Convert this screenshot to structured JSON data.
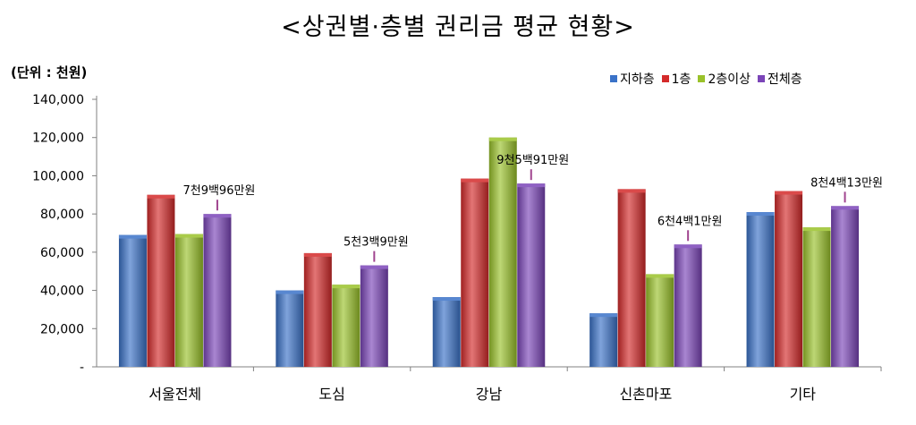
{
  "title": "<상권별·층별 권리금 평균 현황>",
  "unit": "(단위 : 천원)",
  "chart_data": {
    "type": "bar",
    "title": "<상권별·층별 권리금 평균 현황>",
    "categories": [
      "서울전체",
      "도심",
      "강남",
      "신촌마포",
      "기타"
    ],
    "series": [
      {
        "name": "지하층",
        "color": "#3a72c8",
        "values": [
          69000,
          40000,
          36500,
          28000,
          81000
        ]
      },
      {
        "name": "1층",
        "color": "#d42a2a",
        "values": [
          90000,
          59500,
          98500,
          93000,
          92000
        ]
      },
      {
        "name": "2층이상",
        "color": "#9ac22a",
        "values": [
          69500,
          43000,
          120000,
          48500,
          73000
        ]
      },
      {
        "name": "전체층",
        "color": "#7b45b8",
        "values": [
          79960,
          53090,
          95910,
          64010,
          84130
        ]
      }
    ],
    "y_ticks": [
      "-",
      "20,000",
      "40,000",
      "60,000",
      "80,000",
      "100,000",
      "120,000",
      "140,000"
    ],
    "ylim": [
      0,
      140000
    ],
    "grid": false,
    "legend": "top-right",
    "annotations": [
      "7천9백96만원",
      "5천3백9만원",
      "9천5백91만원",
      "6천4백1만원",
      "8천4백13만원"
    ]
  }
}
